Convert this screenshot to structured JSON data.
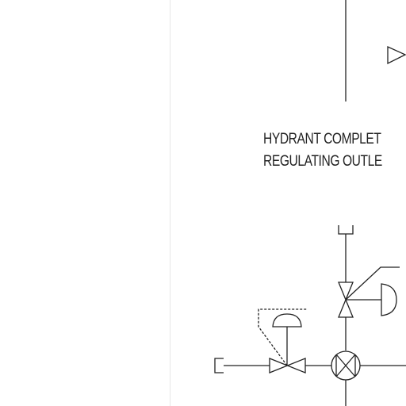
{
  "note": {
    "line1": "HYDRANT COMPLET",
    "line2": "REGULATING OUTLE"
  },
  "colors": {
    "background": "#ffffff",
    "line": "#222222",
    "divider": "#e6e6e6"
  }
}
